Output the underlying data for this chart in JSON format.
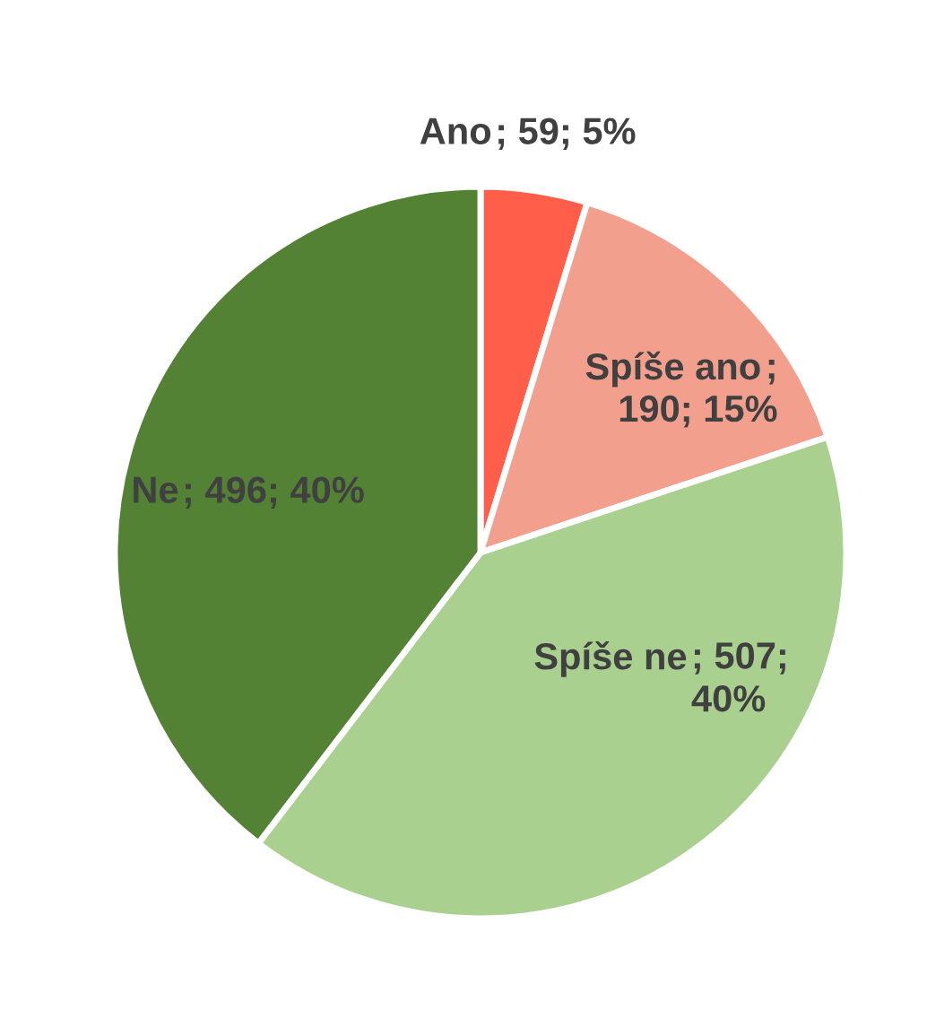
{
  "chart_data": {
    "type": "pie",
    "categories": [
      "Ano",
      "Spíše ano",
      "Spíše ne",
      "Ne"
    ],
    "values": [
      59,
      190,
      507,
      496
    ],
    "colors": [
      "#ff5f4a",
      "#f29f8e",
      "#a9d08e",
      "#548235"
    ],
    "value_labels": [
      "; 59; 5%",
      ";\n190; 15%",
      "; 507;\n40%",
      "; 496; 40%"
    ]
  }
}
